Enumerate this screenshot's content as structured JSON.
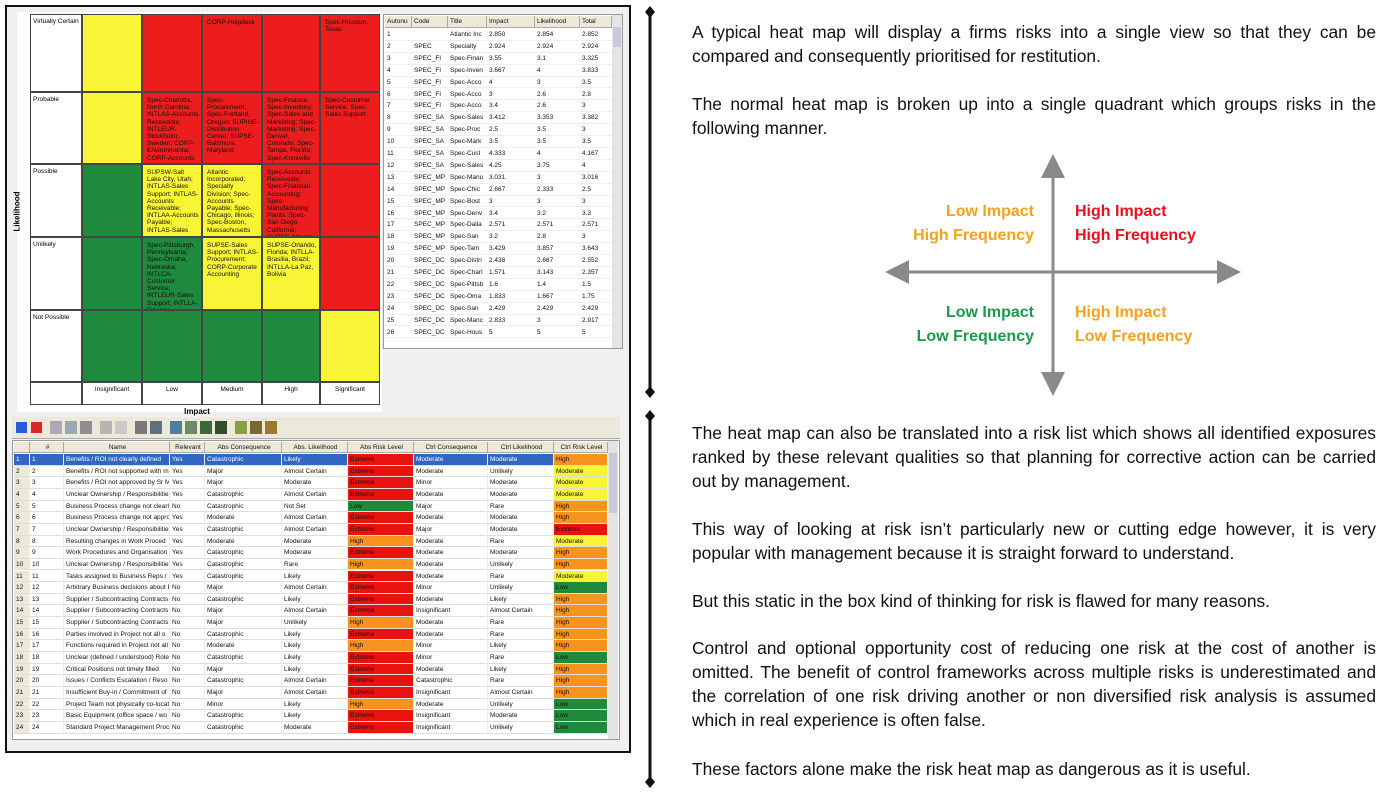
{
  "heatmap": {
    "y_label": "Likelihood",
    "x_label": "Impact",
    "rows": [
      "Virtually Certain",
      "Probable",
      "Possible",
      "Unlikely",
      "Not Possible"
    ],
    "columns": [
      "Insignificant",
      "Low",
      "Medium",
      "High",
      "Significant"
    ],
    "colors": [
      [
        "#f7f536",
        "#ee1d1d",
        "#ee1d1d",
        "#ee1d1d",
        "#ee1d1d"
      ],
      [
        "#f7f536",
        "#ee1d1d",
        "#ee1d1d",
        "#ee1d1d",
        "#ee1d1d"
      ],
      [
        "#1f8a3b",
        "#f7f536",
        "#f7f536",
        "#ee1d1d",
        "#ee1d1d"
      ],
      [
        "#1f8a3b",
        "#1f8a3b",
        "#f7f536",
        "#f7f536",
        "#ee1d1d"
      ],
      [
        "#1f8a3b",
        "#1f8a3b",
        "#1f8a3b",
        "#1f8a3b",
        "#f7f536"
      ]
    ],
    "cells": [
      [
        null,
        null,
        "CORP-Helpdesk",
        null,
        "Spec-Houston, Texas"
      ],
      [
        null,
        "Spec-Charlotte, North Carolina; INTLAS-Accounts Receivable; INTLEUR-Stockholm, Sweden; CORP-Environmental; CORP-Accounts",
        "Spec-Procurement; Spec-Portland, Oregon; SUPINE-Distribution Center; SUPSE-Baltimore, Maryland",
        "Spec-Finance; Spec-Inventory; Spec-Sales and Marketing; Spec-Marketing; Spec-Denver, Colorado; Spec-Tampa, Florida; Spec-Knoxville",
        "Spec-Customer Service; Spec-Sales Support"
      ],
      [
        null,
        "SUPSW-Salt Lake City, Utah; INTLAS-Sales Support; INTLAS-Accounts Receivable; INTLAA-Accounts Payable; INTLAS-Sales",
        "Atlantic Incorporated; Specialty Division; Spec-Accounts Payable; Spec-Chicago, Illinois; Spec-Boston, Massachusetts",
        "Spec-Accounts Receivable; Spec-Financial Accounting; Spec-Manufacturing Plants; Spec-San Diego, California; SUPSE-Atlanta",
        null
      ],
      [
        null,
        "Spec-Pittsburgh, Pennsylvania; Spec-Omaha, Nebraska; INTLCA-Customer Service; INTLEUR-Sales Support; INTLLA-Finance",
        "SUPSE-Sales Support; INTLAS-Procurement; CORP-Corporate Accounting",
        "SUPSE-Orlando, Florida; INTLLA-Brasilia, Brazil; INTLLA-La Paz, Bolivia",
        null
      ],
      [
        null,
        null,
        null,
        null,
        null
      ]
    ]
  },
  "summary_table": {
    "headers": [
      "Autonu",
      "Code",
      "Title",
      "Impact",
      "Likelihood",
      "Total"
    ],
    "rows": [
      [
        "1",
        null,
        "Atlantic Inc",
        "2.850",
        "2.854",
        "2.852"
      ],
      [
        "2",
        "SPEC",
        "Specialty",
        "2.924",
        "2.924",
        "2.924"
      ],
      [
        "3",
        "SPEC_FI",
        "Spec-Finan",
        "3.55",
        "3.1",
        "3.325"
      ],
      [
        "4",
        "SPEC_FI",
        "Spec-Inven",
        "3.667",
        "4",
        "3.833"
      ],
      [
        "5",
        "SPEC_FI",
        "Spec-Acco",
        "4",
        "3",
        "3.5"
      ],
      [
        "6",
        "SPEC_FI",
        "Spec-Acco",
        "3",
        "2.6",
        "2.8"
      ],
      [
        "7",
        "SPEC_FI",
        "Spec-Acco",
        "3.4",
        "2.6",
        "3"
      ],
      [
        "8",
        "SPEC_SA",
        "Spec-Sales",
        "3.412",
        "3.353",
        "3.382"
      ],
      [
        "9",
        "SPEC_SA",
        "Spec-Proc",
        "2.5",
        "3.5",
        "3"
      ],
      [
        "10",
        "SPEC_SA",
        "Spec-Mark",
        "3.5",
        "3.5",
        "3.5"
      ],
      [
        "11",
        "SPEC_SA",
        "Spec-Cust",
        "4.333",
        "4",
        "4.167"
      ],
      [
        "12",
        "SPEC_SA",
        "Spec-Sales",
        "4.25",
        "3.75",
        "4"
      ],
      [
        "13",
        "SPEC_MP",
        "Spec-Manu",
        "3.031",
        "3",
        "3.016"
      ],
      [
        "14",
        "SPEC_MP",
        "Spec-Chic",
        "2.667",
        "2.333",
        "2.5"
      ],
      [
        "15",
        "SPEC_MP",
        "Spec-Bost",
        "3",
        "3",
        "3"
      ],
      [
        "16",
        "SPEC_MP",
        "Spec-Denv",
        "3.4",
        "3.2",
        "3.3"
      ],
      [
        "17",
        "SPEC_MP",
        "Spec-Dalla",
        "2.571",
        "2.571",
        "2.571"
      ],
      [
        "18",
        "SPEC_MP",
        "Spec-San",
        "3.2",
        "2.8",
        "3"
      ],
      [
        "19",
        "SPEC_MP",
        "Spec-Tam",
        "3.429",
        "3.857",
        "3.643"
      ],
      [
        "20",
        "SPEC_DC",
        "Spec-Distri",
        "2.438",
        "2.667",
        "2.552"
      ],
      [
        "21",
        "SPEC_DC",
        "Spec-Charl",
        "1.571",
        "3.143",
        "2.357"
      ],
      [
        "22",
        "SPEC_DC",
        "Spec-Pittsb",
        "1.6",
        "1.4",
        "1.5"
      ],
      [
        "23",
        "SPEC_DC",
        "Spec-Oma",
        "1.833",
        "1.667",
        "1.75"
      ],
      [
        "24",
        "SPEC_DC",
        "Spec-San",
        "2.429",
        "2.429",
        "2.429"
      ],
      [
        "25",
        "SPEC_DC",
        "Spec-Manc",
        "2.833",
        "3",
        "2.917"
      ],
      [
        "26",
        "SPEC_DC",
        "Spec-Hous",
        "5",
        "5",
        "5"
      ]
    ]
  },
  "risk_table": {
    "headers": [
      null,
      "#",
      "Name",
      "Relevant",
      "Abs Consequence",
      "Abs. Likelihood",
      "Abs Risk Level",
      "Ctrl Consequence",
      "Ctrl Likelihood",
      "Ctrl Risk Level"
    ],
    "selected_row": 0,
    "level_columns": [
      6,
      9
    ],
    "level_colors": {
      "Extreme": "#e8120f",
      "High": "#f7941d",
      "Moderate": "#f7f536",
      "Low": "#1f8a3b"
    },
    "rows": [
      [
        "1",
        "1",
        "Benefits / ROI not clearly defined",
        "Yes",
        "Catastrophic",
        "Likely",
        "Extreme",
        "Moderate",
        "Moderate",
        "High"
      ],
      [
        "2",
        "2",
        "Benefits / ROI not supported with m",
        "Yes",
        "Major",
        "Almost Certain",
        "Extreme",
        "Moderate",
        "Unlikely",
        "Moderate"
      ],
      [
        "3",
        "3",
        "Benefits / ROI not approved by Sr M",
        "Yes",
        "Major",
        "Moderate",
        "Extreme",
        "Minor",
        "Moderate",
        "Moderate"
      ],
      [
        "4",
        "4",
        "Unclear Ownership / Responsibilitie",
        "Yes",
        "Catastrophic",
        "Almost Certain",
        "Extreme",
        "Moderate",
        "Moderate",
        "Moderate"
      ],
      [
        "5",
        "5",
        "Business Process change not clearl",
        "No",
        "Catastrophic",
        "Not Set",
        "Low",
        "Major",
        "Rare",
        "High"
      ],
      [
        "6",
        "6",
        "Business Process change not appro",
        "Yes",
        "Moderate",
        "Almost Certain",
        "Extreme",
        "Moderate",
        "Moderate",
        "High"
      ],
      [
        "7",
        "7",
        "Unclear Ownership / Responsibilitie",
        "Yes",
        "Catastrophic",
        "Almost Certain",
        "Extreme",
        "Major",
        "Moderate",
        "Extreme"
      ],
      [
        "8",
        "8",
        "Resulting changes in Work Proced",
        "Yes",
        "Moderate",
        "Moderate",
        "High",
        "Moderate",
        "Rare",
        "Moderate"
      ],
      [
        "9",
        "9",
        "Work Procedures and Organisation",
        "Yes",
        "Catastrophic",
        "Moderate",
        "Extreme",
        "Moderate",
        "Moderate",
        "High"
      ],
      [
        "10",
        "10",
        "Unclear Ownership / Responsibilitie",
        "Yes",
        "Catastrophic",
        "Rare",
        "High",
        "Moderate",
        "Unlikely",
        "High"
      ],
      [
        "11",
        "11",
        "Tasks assigned to Business Reps /",
        "Yes",
        "Catastrophic",
        "Likely",
        "Extreme",
        "Moderate",
        "Rare",
        "Moderate"
      ],
      [
        "12",
        "12",
        "Arbitrary Business decisions about P",
        "No",
        "Major",
        "Almost Certain",
        "Extreme",
        "Minor",
        "Unlikely",
        "Low"
      ],
      [
        "13",
        "13",
        "Supplier / Subcontracting Contracts",
        "No",
        "Catastrophic",
        "Likely",
        "Extreme",
        "Moderate",
        "Likely",
        "High"
      ],
      [
        "14",
        "14",
        "Supplier / Subcontracting Contracts",
        "No",
        "Major",
        "Almost Certain",
        "Extreme",
        "Insignificant",
        "Almost Certain",
        "High"
      ],
      [
        "15",
        "15",
        "Supplier / Subcontracting Contracts",
        "No",
        "Major",
        "Unlikely",
        "High",
        "Moderate",
        "Rare",
        "High"
      ],
      [
        "16",
        "16",
        "Parties involved in Project not all o",
        "No",
        "Catastrophic",
        "Likely",
        "Extreme",
        "Moderate",
        "Rare",
        "High"
      ],
      [
        "17",
        "17",
        "Functions required in Project not all",
        "No",
        "Moderate",
        "Likely",
        "High",
        "Minor",
        "Likely",
        "High"
      ],
      [
        "18",
        "18",
        "Unclear (defined / understood) Role",
        "No",
        "Catastrophic",
        "Likely",
        "Extreme",
        "Minor",
        "Rare",
        "Low"
      ],
      [
        "19",
        "19",
        "Critical Positions not timely filled",
        "No",
        "Major",
        "Likely",
        "Extreme",
        "Moderate",
        "Likely",
        "High"
      ],
      [
        "20",
        "20",
        "Issues / Conflicts Escalation / Reso",
        "No",
        "Catastrophic",
        "Almost Certain",
        "Extreme",
        "Catastrophic",
        "Rare",
        "High"
      ],
      [
        "21",
        "21",
        "Insufficient Buy-in / Commitment of",
        "No",
        "Major",
        "Almost Certain",
        "Extreme",
        "Insignificant",
        "Almost Certain",
        "High"
      ],
      [
        "22",
        "22",
        "Project Team not physically co-locat",
        "No",
        "Minor",
        "Likely",
        "High",
        "Moderate",
        "Unlikely",
        "Low"
      ],
      [
        "23",
        "23",
        "Basic Equipment (office space / wo",
        "No",
        "Catastrophic",
        "Likely",
        "Extreme",
        "Insignificant",
        "Moderate",
        "Low"
      ],
      [
        "24",
        "24",
        "Standard Project Management Proc",
        "No",
        "Catastrophic",
        "Moderate",
        "Extreme",
        "Insignificant",
        "Unlikely",
        "Low"
      ]
    ]
  },
  "quadrant": {
    "top_left": {
      "lines": [
        "Low Impact",
        "High Frequency"
      ],
      "color": "#f4a21c"
    },
    "top_right": {
      "lines": [
        "High Impact",
        "High Frequency"
      ],
      "color": "#e8101c"
    },
    "bottom_left": {
      "lines": [
        "Low Impact",
        "Low Frequency"
      ],
      "color": "#1a9a4a"
    },
    "bottom_right": {
      "lines": [
        "High Impact",
        "Low Frequency"
      ],
      "color": "#f4a21c"
    }
  },
  "paragraphs_top": [
    "A typical heat map will display a firms risks into a single view so that they can be compared and consequently prioritised for restitution.",
    "The normal heat map is broken up into a single quadrant which groups risks in the following manner."
  ],
  "paragraphs_bottom": [
    "The heat map can also be translated into a risk list which shows all identified exposures ranked by these relevant qualities so that planning for corrective action can be carried out by management.",
    "This way of looking at risk isn’t particularly new or cutting edge however, it is very popular with management because it is straight forward to understand.",
    "But this static in the box kind of thinking for risk is flawed for many reasons.",
    "Control and optional opportunity cost of reducing one risk at the cost of another is omitted. The benefit of control frameworks across multiple risks is underestimated and the correlation of one risk driving another or non diversified risk analysis is assumed which in real experience is often false.",
    "These factors alone make the risk heat map as dangerous as it is useful."
  ]
}
